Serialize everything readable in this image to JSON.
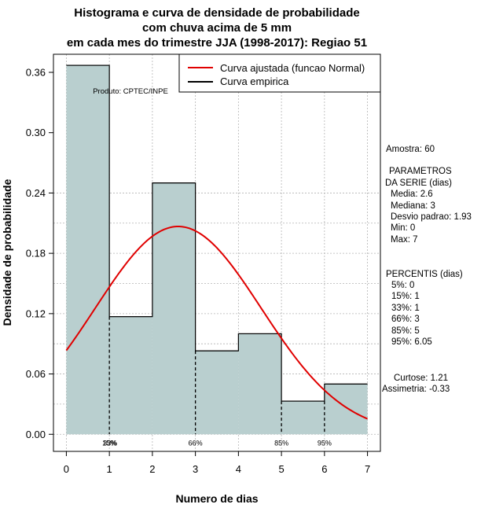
{
  "chart_data": {
    "type": "bar",
    "title_lines": [
      "Histograma e curva de densidade de probabilidade",
      "com chuva acima de 5 mm",
      "em cada mes do trimestre JJA (1998-2017): Regiao 51"
    ],
    "xlabel": "Numero de dias",
    "ylabel": "Densidade de probabilidade",
    "xlim": [
      -0.3,
      7.3
    ],
    "ylim": [
      -0.017,
      0.378
    ],
    "x_ticks": [
      0,
      1,
      2,
      3,
      4,
      5,
      6,
      7
    ],
    "y_ticks": [
      0.0,
      0.06,
      0.12,
      0.18,
      0.24,
      0.3,
      0.36
    ],
    "y_tick_labels": [
      "0.00",
      "0.06",
      "0.12",
      "0.18",
      "0.24",
      "0.30",
      "0.36"
    ],
    "bins": [
      {
        "from": 0,
        "to": 1,
        "density": 0.367
      },
      {
        "from": 1,
        "to": 2,
        "density": 0.117
      },
      {
        "from": 2,
        "to": 3,
        "density": 0.25
      },
      {
        "from": 3,
        "to": 4,
        "density": 0.083
      },
      {
        "from": 4,
        "to": 5,
        "density": 0.1
      },
      {
        "from": 5,
        "to": 6,
        "density": 0.033
      },
      {
        "from": 6,
        "to": 7,
        "density": 0.05
      }
    ],
    "normal_fit": {
      "mean": 2.6,
      "sd": 1.93,
      "x_range": [
        0,
        7
      ]
    },
    "percentile_markers": [
      {
        "x": 1,
        "label": "15%"
      },
      {
        "x": 1,
        "label": "33%"
      },
      {
        "x": 3,
        "label": "66%"
      },
      {
        "x": 5,
        "label": "85%"
      },
      {
        "x": 6,
        "label": "95%"
      }
    ],
    "legend": [
      {
        "label": "Curva ajustada (funcao Normal)",
        "color": "#e00000"
      },
      {
        "label": "Curva empirica",
        "color": "#000000"
      }
    ],
    "legend_position": "top-right",
    "credit": "Produto: CPTEC/INPE",
    "grid": true,
    "colors": {
      "bar_fill": "#b9cfcf",
      "bar_stroke": "#222222",
      "curve": "#e00000",
      "grid": "#b4b4b4"
    }
  },
  "stats": {
    "amostra": "Amostra: 60",
    "param_heading": [
      "PARAMETROS",
      "DA SERIE (dias)"
    ],
    "params": [
      "Media: 2.6",
      "Mediana: 3",
      "Desvio padrao: 1.93",
      "Min: 0",
      "Max: 7"
    ],
    "percentis_heading": "PERCENTIS (dias)",
    "percentis": [
      "5%: 0",
      "15%: 1",
      "33%: 1",
      "66%: 3",
      "85%: 5",
      "95%: 6.05"
    ],
    "curtose": "Curtose: 1.21",
    "assimetria": "Assimetria: -0.33"
  }
}
